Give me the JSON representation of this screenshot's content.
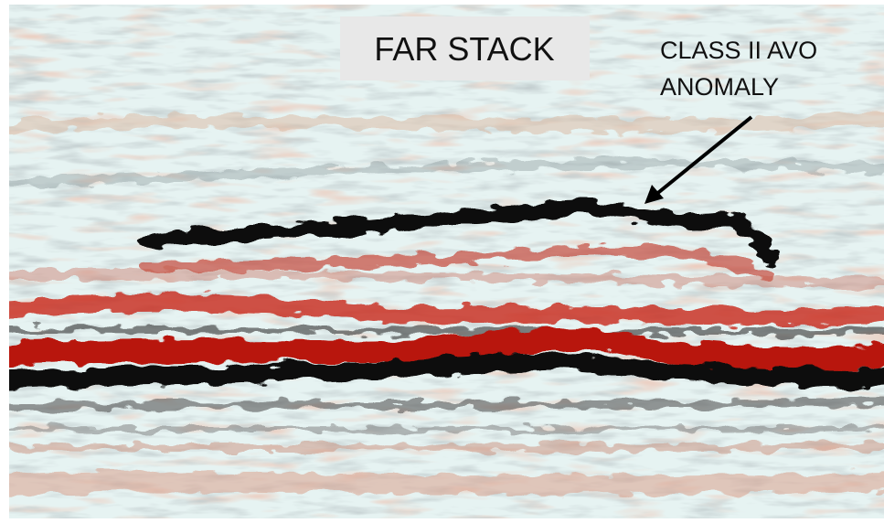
{
  "label_box": {
    "text": "FAR STACK"
  },
  "annotation": {
    "lines": [
      "CLASS II AVO",
      "ANOMALY"
    ]
  }
}
